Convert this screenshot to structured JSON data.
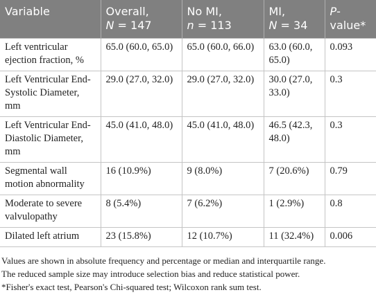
{
  "table": {
    "header": [
      [
        "Variable"
      ],
      [
        "Overall,",
        "N",
        " = 147"
      ],
      [
        "No MI,",
        "n",
        " = 113"
      ],
      [
        "MI,",
        "N",
        " = 34"
      ],
      [
        "P",
        "-value*"
      ]
    ],
    "rows": [
      [
        "Left ventricular ejection fraction, %",
        "65.0 (60.0, 65.0)",
        "65.0 (60.0, 66.0)",
        "63.0 (60.0, 65.0)",
        "0.093"
      ],
      [
        "Left Ventricular End-Systolic Diameter, mm",
        "29.0 (27.0, 32.0)",
        "29.0 (27.0, 32.0)",
        "30.0 (27.0, 33.0)",
        "0.3"
      ],
      [
        "Left Ventricular End-Diastolic Diameter, mm",
        "45.0 (41.0, 48.0)",
        "45.0 (41.0, 48.0)",
        "46.5 (42.3, 48.0)",
        "0.3"
      ],
      [
        "Segmental wall motion abnormality",
        "16 (10.9%)",
        "9 (8.0%)",
        "7 (20.6%)",
        "0.79"
      ],
      [
        "Moderate to severe valvulopathy",
        "8 (5.4%)",
        "7 (6.2%)",
        "1 (2.9%)",
        "0.8"
      ],
      [
        "Dilated left atrium",
        "23 (15.8%)",
        "12 (10.7%)",
        "11 (32.4%)",
        "0.006"
      ]
    ],
    "footnotes": [
      "Values are shown in absolute frequency and percentage or median and interquartile range.",
      "The reduced sample size may introduce selection bias and reduce statistical power.",
      "*Fisher's exact test, Pearson's Chi-squared test; Wilcoxon rank sum test."
    ]
  }
}
